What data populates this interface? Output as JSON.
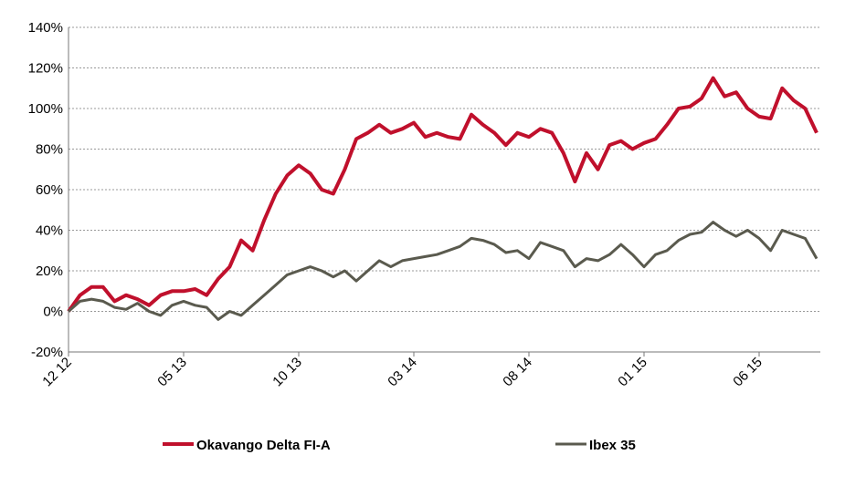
{
  "chart_data": {
    "type": "line",
    "categories": [
      "12 12",
      null,
      null,
      null,
      null,
      null,
      null,
      null,
      null,
      null,
      "05 13",
      null,
      null,
      null,
      null,
      null,
      null,
      null,
      null,
      null,
      "10 13",
      null,
      null,
      null,
      null,
      null,
      null,
      null,
      null,
      null,
      "03 14",
      null,
      null,
      null,
      null,
      null,
      null,
      null,
      null,
      null,
      "08 14",
      null,
      null,
      null,
      null,
      null,
      null,
      null,
      null,
      null,
      "01 15",
      null,
      null,
      null,
      null,
      null,
      null,
      null,
      null,
      null,
      "06 15",
      null,
      null,
      null,
      null,
      null
    ],
    "series": [
      {
        "name": "Okavango Delta FI-A",
        "color": "#c0102c",
        "values": [
          0,
          8,
          12,
          12,
          5,
          8,
          6,
          3,
          8,
          10,
          10,
          11,
          8,
          16,
          22,
          35,
          30,
          45,
          58,
          67,
          72,
          68,
          60,
          58,
          70,
          85,
          88,
          92,
          88,
          90,
          93,
          86,
          88,
          86,
          85,
          97,
          92,
          88,
          82,
          88,
          86,
          90,
          88,
          78,
          64,
          78,
          70,
          82,
          84,
          80,
          83,
          85,
          92,
          100,
          101,
          105,
          115,
          106,
          108,
          100,
          96,
          95,
          110,
          104,
          100,
          88
        ]
      },
      {
        "name": "Ibex 35",
        "color": "#5a5a4e",
        "values": [
          0,
          5,
          6,
          5,
          2,
          1,
          4,
          0,
          -2,
          3,
          5,
          3,
          2,
          -4,
          0,
          -2,
          3,
          8,
          13,
          18,
          20,
          22,
          20,
          17,
          20,
          15,
          20,
          25,
          22,
          25,
          26,
          27,
          28,
          30,
          32,
          36,
          35,
          33,
          29,
          30,
          26,
          34,
          32,
          30,
          22,
          26,
          25,
          28,
          33,
          28,
          22,
          28,
          30,
          35,
          38,
          39,
          44,
          40,
          37,
          40,
          36,
          30,
          40,
          38,
          36,
          26
        ]
      }
    ],
    "ylim": [
      -20,
      140
    ],
    "yticks": [
      {
        "value": -20,
        "label": "-20%"
      },
      {
        "value": 0,
        "label": "0%"
      },
      {
        "value": 20,
        "label": "20%"
      },
      {
        "value": 40,
        "label": "40%"
      },
      {
        "value": 60,
        "label": "60%"
      },
      {
        "value": 80,
        "label": "80%"
      },
      {
        "value": 100,
        "label": "100%"
      },
      {
        "value": 120,
        "label": "120%"
      },
      {
        "value": 140,
        "label": "140%"
      }
    ],
    "grid": true
  }
}
